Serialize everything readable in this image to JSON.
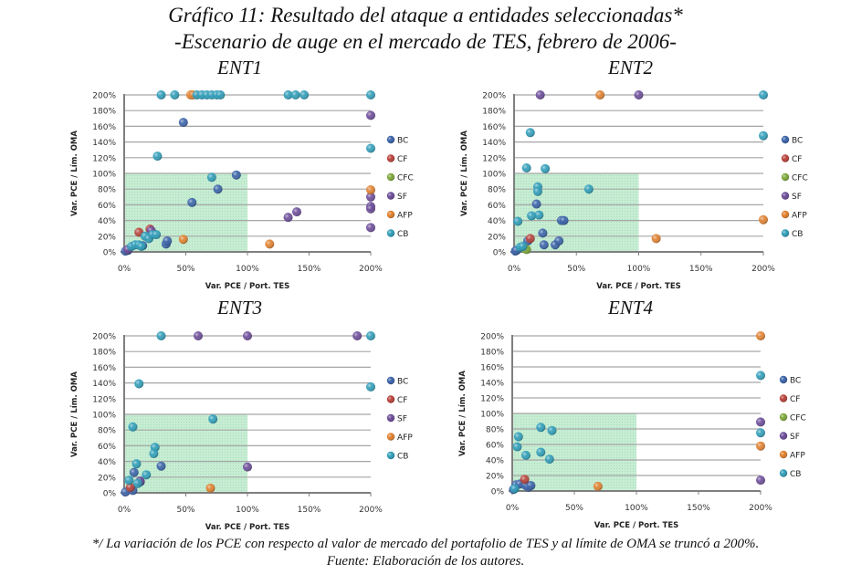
{
  "title": "Gráfico 11: Resultado del ataque a entidades seleccionadas*",
  "subtitle": "-Escenario de auge en el mercado de TES, febrero de 2006-",
  "footnote": "*/ La variación de los PCE con respecto al valor de mercado del portafolio de TES y al límite de OMA se truncó a 200%.",
  "source": "Fuente: Elaboración de los autores.",
  "colors": {
    "BC": "#3a62a8",
    "CF": "#b8423a",
    "CFC": "#7fa83c",
    "SF": "#6a4a98",
    "AFP": "#e07f2c",
    "CB": "#2e9cb8",
    "safe_zone": "#b8e8c8",
    "grid": "#a6a6a6",
    "axis": "#7f7f7f"
  },
  "chart_data": [
    {
      "type": "scatter",
      "title": "ENT1",
      "xlabel": "Var. PCE / Port. TES",
      "ylabel": "Var. PCE / Lím. OMA",
      "xlim": [
        0,
        200
      ],
      "ylim": [
        0,
        200
      ],
      "x_ticks": [
        "0%",
        "50%",
        "100%",
        "150%",
        "200%"
      ],
      "y_ticks": [
        "0%",
        "20%",
        "40%",
        "60%",
        "80%",
        "100%",
        "120%",
        "140%",
        "160%",
        "180%",
        "200%"
      ],
      "grid": "horizontal",
      "safe_zone": {
        "x": [
          0,
          100
        ],
        "y": [
          0,
          100
        ]
      },
      "legend": [
        "BC",
        "CF",
        "CFC",
        "SF",
        "AFP",
        "CB"
      ],
      "legend_position": "right",
      "series": [
        {
          "name": "BC",
          "points": [
            [
              48,
              165
            ],
            [
              1,
              1
            ],
            [
              3,
              2
            ],
            [
              34,
              10
            ],
            [
              35,
              14
            ],
            [
              15,
              8
            ],
            [
              91,
              98
            ],
            [
              76,
              80
            ],
            [
              55,
              63
            ]
          ]
        },
        {
          "name": "CF",
          "points": [
            [
              12,
              25
            ],
            [
              21,
              29
            ]
          ]
        },
        {
          "name": "CFC",
          "points": []
        },
        {
          "name": "SF",
          "points": [
            [
              133,
              44
            ],
            [
              140,
              51
            ],
            [
              200,
              174
            ],
            [
              200,
              70
            ],
            [
              200,
              58
            ],
            [
              200,
              55
            ],
            [
              200,
              31
            ],
            [
              22,
              27
            ],
            [
              3,
              3
            ]
          ]
        },
        {
          "name": "AFP",
          "points": [
            [
              54,
              200
            ],
            [
              56,
              200
            ],
            [
              118,
              10
            ],
            [
              48,
              16
            ],
            [
              200,
              79
            ]
          ]
        },
        {
          "name": "CB",
          "points": [
            [
              30,
              200
            ],
            [
              41,
              200
            ],
            [
              59,
              200
            ],
            [
              63,
              200
            ],
            [
              67,
              200
            ],
            [
              71,
              200
            ],
            [
              75,
              200
            ],
            [
              78,
              200
            ],
            [
              133,
              200
            ],
            [
              139,
              200
            ],
            [
              146,
              200
            ],
            [
              200,
              200
            ],
            [
              27,
              122
            ],
            [
              71,
              95
            ],
            [
              200,
              132
            ],
            [
              6,
              7
            ],
            [
              9,
              9
            ],
            [
              12,
              9
            ],
            [
              14,
              7
            ],
            [
              17,
              20
            ],
            [
              20,
              17
            ],
            [
              23,
              22
            ],
            [
              26,
              22
            ]
          ]
        }
      ]
    },
    {
      "type": "scatter",
      "title": "ENT2",
      "xlabel": "Var. PCE / Port. TES",
      "ylabel": "Var. PCE / Lím. OMA",
      "xlim": [
        0,
        200
      ],
      "ylim": [
        0,
        200
      ],
      "x_ticks": [
        "0%",
        "50%",
        "100%",
        "150%",
        "200%"
      ],
      "y_ticks": [
        "0%",
        "20%",
        "40%",
        "60%",
        "80%",
        "100%",
        "120%",
        "140%",
        "160%",
        "180%",
        "200%"
      ],
      "grid": "horizontal",
      "safe_zone": {
        "x": [
          0,
          100
        ],
        "y": [
          0,
          100
        ]
      },
      "legend": [
        "BC",
        "CF",
        "CFC",
        "SF",
        "AFP",
        "CB"
      ],
      "legend_position": "right",
      "series": [
        {
          "name": "BC",
          "points": [
            [
              1,
              1
            ],
            [
              2,
              2
            ],
            [
              11,
              14
            ],
            [
              18,
              61
            ],
            [
              23,
              24
            ],
            [
              24,
              9
            ],
            [
              33,
              9
            ],
            [
              36,
              14
            ],
            [
              38,
              40
            ],
            [
              40,
              40
            ]
          ]
        },
        {
          "name": "CF",
          "points": [
            [
              13,
              17
            ]
          ]
        },
        {
          "name": "CFC",
          "points": [
            [
              9,
              4
            ],
            [
              10,
              3
            ]
          ]
        },
        {
          "name": "SF",
          "points": [
            [
              21,
              200
            ],
            [
              100,
              200
            ]
          ]
        },
        {
          "name": "AFP",
          "points": [
            [
              69,
              200
            ],
            [
              114,
              17
            ],
            [
              200,
              41
            ]
          ]
        },
        {
          "name": "CB",
          "points": [
            [
              13,
              152
            ],
            [
              200,
              200
            ],
            [
              200,
              148
            ],
            [
              10,
              107
            ],
            [
              25,
              106
            ],
            [
              19,
              83
            ],
            [
              19,
              77
            ],
            [
              60,
              80
            ],
            [
              14,
              46
            ],
            [
              20,
              47
            ],
            [
              3,
              39
            ],
            [
              5,
              6
            ],
            [
              7,
              7
            ]
          ]
        }
      ]
    },
    {
      "type": "scatter",
      "title": "ENT3",
      "xlabel": "Var. PCE / Port. TES",
      "ylabel": "Var. PCE / Lím. OMA",
      "xlim": [
        0,
        200
      ],
      "ylim": [
        0,
        200
      ],
      "x_ticks": [
        "0%",
        "50%",
        "100%",
        "150%",
        "200%"
      ],
      "y_ticks": [
        "0%",
        "20%",
        "40%",
        "60%",
        "80%",
        "100%",
        "120%",
        "140%",
        "160%",
        "180%",
        "200%"
      ],
      "grid": "horizontal",
      "safe_zone": {
        "x": [
          0,
          100
        ],
        "y": [
          0,
          100
        ]
      },
      "legend": [
        "BC",
        "CF",
        "SF",
        "AFP",
        "CB"
      ],
      "legend_position": "right",
      "series": [
        {
          "name": "BC",
          "points": [
            [
              1,
              1
            ],
            [
              8,
              26
            ],
            [
              13,
              14
            ],
            [
              30,
              34
            ],
            [
              7,
              3
            ]
          ]
        },
        {
          "name": "CF",
          "points": [
            [
              5,
              7
            ]
          ]
        },
        {
          "name": "SF",
          "points": [
            [
              60,
              200
            ],
            [
              100,
              200
            ],
            [
              189,
              200
            ],
            [
              100,
              33
            ],
            [
              13,
              15
            ]
          ]
        },
        {
          "name": "AFP",
          "points": [
            [
              70,
              6
            ]
          ]
        },
        {
          "name": "CB",
          "points": [
            [
              30,
              200
            ],
            [
              200,
              200
            ],
            [
              12,
              139
            ],
            [
              200,
              135
            ],
            [
              72,
              94
            ],
            [
              7,
              84
            ],
            [
              25,
              58
            ],
            [
              24,
              50
            ],
            [
              10,
              37
            ],
            [
              18,
              23
            ],
            [
              4,
              16
            ],
            [
              11,
              12
            ]
          ]
        }
      ]
    },
    {
      "type": "scatter",
      "title": "ENT4",
      "xlabel": "Var. PCE / Port. TES",
      "ylabel": "Var. PCE / Lím. OMA",
      "xlim": [
        0,
        200
      ],
      "ylim": [
        0,
        200
      ],
      "x_ticks": [
        "0%",
        "50%",
        "100%",
        "150%",
        "200%"
      ],
      "y_ticks": [
        "0%",
        "20%",
        "40%",
        "60%",
        "80%",
        "100%",
        "120%",
        "140%",
        "160%",
        "180%",
        "200%"
      ],
      "grid": "horizontal",
      "safe_zone": {
        "x": [
          0,
          100
        ],
        "y": [
          0,
          100
        ]
      },
      "legend": [
        "BC",
        "CF",
        "CFC",
        "SF",
        "AFP",
        "CB"
      ],
      "legend_position": "right",
      "series": [
        {
          "name": "BC",
          "points": [
            [
              1,
              2
            ],
            [
              3,
              8
            ],
            [
              6,
              9
            ],
            [
              11,
              7
            ],
            [
              13,
              5
            ],
            [
              15,
              7
            ]
          ]
        },
        {
          "name": "CF",
          "points": [
            [
              10,
              15
            ]
          ]
        },
        {
          "name": "CFC",
          "points": []
        },
        {
          "name": "SF",
          "points": [
            [
              200,
              89
            ],
            [
              200,
              14
            ]
          ]
        },
        {
          "name": "AFP",
          "points": [
            [
              200,
              200
            ],
            [
              200,
              58
            ],
            [
              69,
              6
            ]
          ]
        },
        {
          "name": "CB",
          "points": [
            [
              200,
              149
            ],
            [
              200,
              75
            ],
            [
              23,
              82
            ],
            [
              32,
              78
            ],
            [
              5,
              70
            ],
            [
              4,
              57
            ],
            [
              23,
              50
            ],
            [
              30,
              41
            ],
            [
              11,
              46
            ],
            [
              2,
              3
            ]
          ]
        }
      ]
    }
  ]
}
